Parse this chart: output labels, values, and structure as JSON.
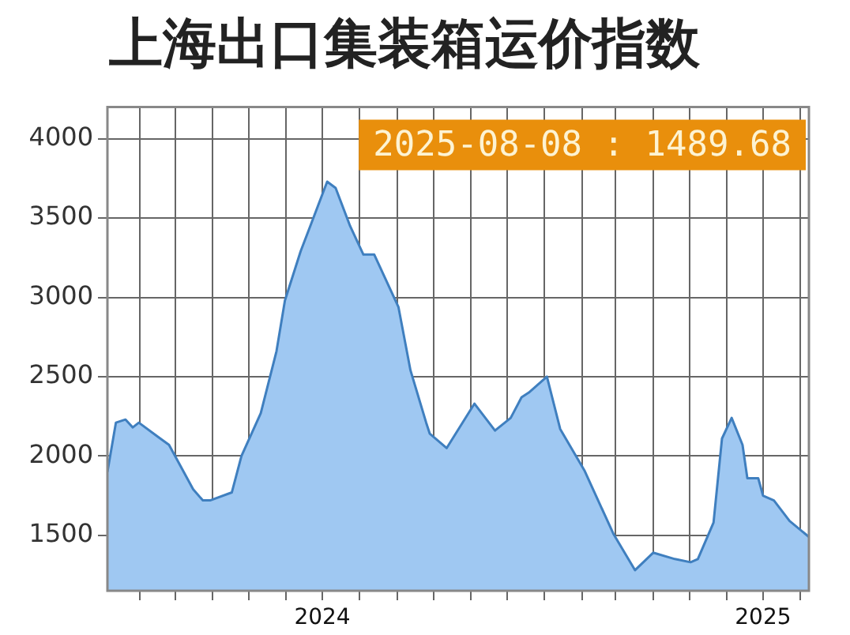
{
  "chart_data": {
    "type": "area",
    "title": "上海出口集装箱运价指数",
    "annotations": [
      "2025-08-08 : 1489.68"
    ],
    "x": [
      "2024-01-05",
      "2024-01-12",
      "2024-01-20",
      "2024-01-26",
      "2024-01-31",
      "2024-02-16",
      "2024-02-25",
      "2024-03-16",
      "2024-03-24",
      "2024-03-30",
      "2024-04-17",
      "2024-04-25",
      "2024-05-11",
      "2024-05-24",
      "2024-05-31",
      "2024-06-13",
      "2024-06-22",
      "2024-07-05",
      "2024-07-12",
      "2024-07-24",
      "2024-08-04",
      "2024-08-13",
      "2024-09-02",
      "2024-09-12",
      "2024-09-25",
      "2024-09-28",
      "2024-10-12",
      "2024-11-04",
      "2024-11-21",
      "2024-12-04",
      "2024-12-13",
      "2024-12-19",
      "2025-01-03",
      "2025-01-14",
      "2025-02-03",
      "2025-02-27",
      "2025-03-17",
      "2025-04-01",
      "2025-04-19",
      "2025-05-02",
      "2025-05-08",
      "2025-05-21",
      "2025-05-28",
      "2025-06-05",
      "2025-06-14",
      "2025-06-18",
      "2025-06-27",
      "2025-07-01",
      "2025-07-10",
      "2025-07-23",
      "2025-08-08"
    ],
    "series": [
      {
        "color": "#9fc8f2",
        "values": [
          1900,
          2210,
          2230,
          2180,
          2210,
          2120,
          2070,
          1790,
          1720,
          1720,
          1770,
          2000,
          2270,
          2660,
          2980,
          3290,
          3470,
          3730,
          3690,
          3450,
          3270,
          3270,
          2940,
          2540,
          2210,
          2140,
          2050,
          2330,
          2160,
          2240,
          2370,
          2400,
          2500,
          2170,
          1910,
          1510,
          1280,
          1390,
          1350,
          1330,
          1350,
          1580,
          2110,
          2240,
          2070,
          1860,
          1860,
          1750,
          1720,
          1590,
          1489.68
        ]
      }
    ],
    "xlim": [
      "2024-01-05",
      "2025-08-08"
    ],
    "xticks": [
      {
        "value": "2024-02-01",
        "label": null
      },
      {
        "value": "2024-03-01",
        "label": null
      },
      {
        "value": "2024-04-01",
        "label": null
      },
      {
        "value": "2024-05-01",
        "label": null
      },
      {
        "value": "2024-06-01",
        "label": null
      },
      {
        "value": "2024-07-01",
        "label": "2024"
      },
      {
        "value": "2024-08-01",
        "label": null
      },
      {
        "value": "2024-09-01",
        "label": null
      },
      {
        "value": "2024-10-01",
        "label": null
      },
      {
        "value": "2024-11-01",
        "label": null
      },
      {
        "value": "2024-12-01",
        "label": null
      },
      {
        "value": "2025-01-01",
        "label": null
      },
      {
        "value": "2025-02-01",
        "label": null
      },
      {
        "value": "2025-03-01",
        "label": null
      },
      {
        "value": "2025-04-01",
        "label": null
      },
      {
        "value": "2025-05-01",
        "label": null
      },
      {
        "value": "2025-06-01",
        "label": null
      },
      {
        "value": "2025-07-01",
        "label": "2025"
      },
      {
        "value": "2025-08-01",
        "label": null
      }
    ],
    "ylim": [
      1150,
      4200
    ],
    "yticks": [
      1500,
      2000,
      2500,
      3000,
      3500,
      4000
    ],
    "grid": true,
    "legend": false,
    "marker": "none",
    "line_style": "solid"
  }
}
